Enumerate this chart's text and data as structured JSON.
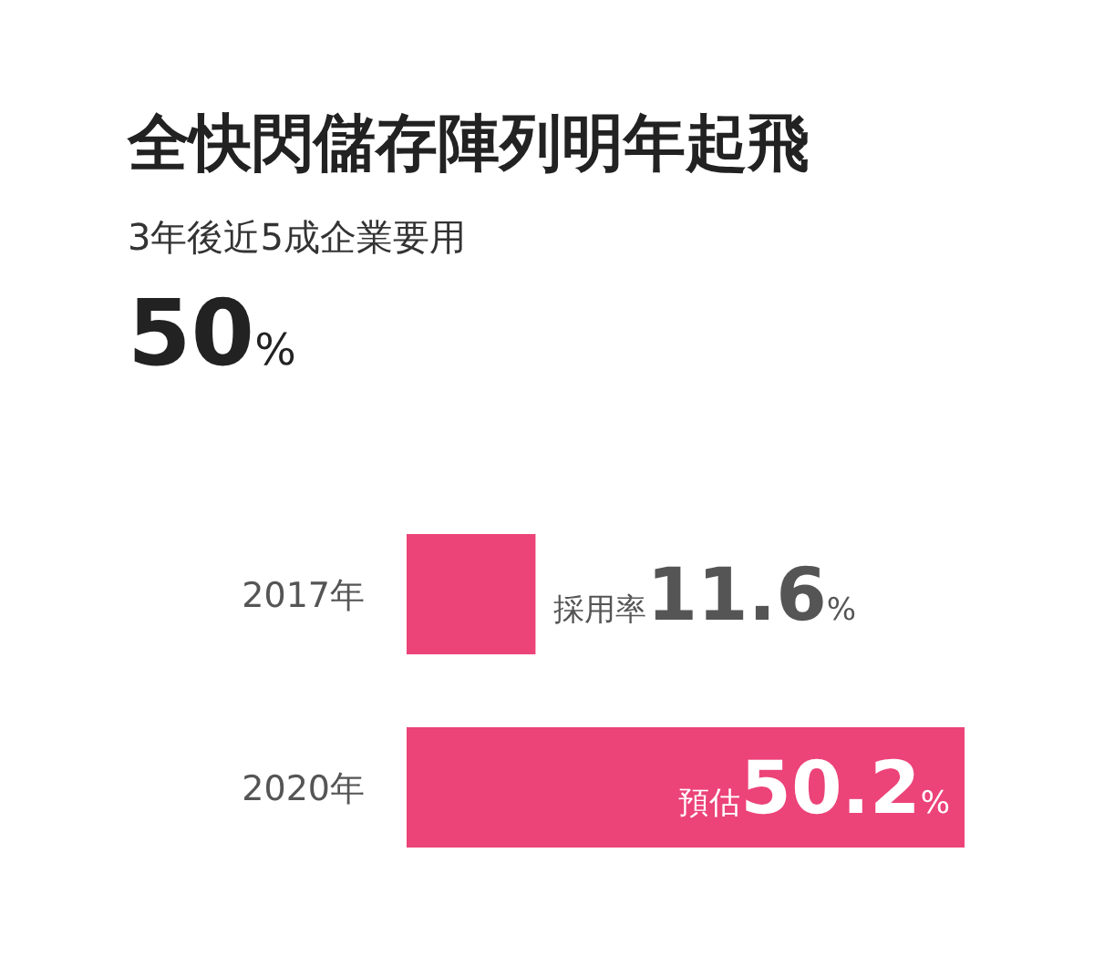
{
  "chart_data": {
    "type": "bar",
    "orientation": "horizontal",
    "title": "全快閃儲存陣列明年起飛",
    "subtitle": "3年後近5成企業要用",
    "annotations": [
      "50%"
    ],
    "categories": [
      "2017年",
      "2020年"
    ],
    "values": [
      11.6,
      50.2
    ],
    "value_labels": [
      "採用率11.6%",
      "預估50.2%"
    ],
    "color": "#ec4379"
  }
}
